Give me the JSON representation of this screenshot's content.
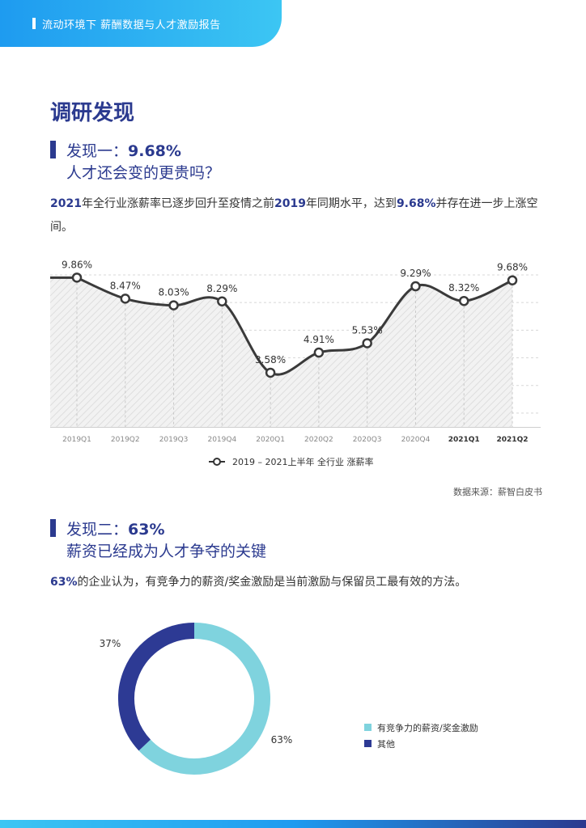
{
  "header": {
    "title": "流动环境下 薪酬数据与人才激励报告"
  },
  "section": {
    "title": "调研发现"
  },
  "finding1": {
    "label": "发现一：",
    "highlight": "9.68%",
    "subtitle": "人才还会变的更贵吗？",
    "para_year1": "2021",
    "para_text1": "年全行业涨薪率已逐步回升至疫情之前",
    "para_year2": "2019",
    "para_text2": "年同期水平，达到",
    "para_value": "9.68%",
    "para_text3": "并存在进一步上涨空间。"
  },
  "chart1_legend": "2019 – 2021上半年 全行业 涨薪率",
  "source": "数据来源：薪智白皮书",
  "finding2": {
    "label": "发现二：",
    "highlight": "63%",
    "subtitle": "薪资已经成为人才争夺的关键",
    "para_value": "63%",
    "para_text": "的企业认为，有竞争力的薪资/奖金激励是当前激励与保留员工最有效的方法。"
  },
  "colors": {
    "accent": "#2b3a8f",
    "header": "#1e9bf0",
    "donut_light": "#7fd3de",
    "donut_dark": "#2d3a94"
  },
  "chart_data": [
    {
      "type": "area",
      "categories": [
        "2019Q1",
        "2019Q2",
        "2019Q3",
        "2019Q4",
        "2020Q1",
        "2020Q2",
        "2020Q3",
        "2020Q4",
        "2021Q1",
        "2021Q2"
      ],
      "values": [
        9.86,
        8.47,
        8.03,
        8.29,
        3.58,
        4.91,
        5.53,
        9.29,
        8.32,
        9.68
      ],
      "labels": [
        "9.86%",
        "8.47%",
        "8.03%",
        "8.29%",
        "3.58%",
        "4.91%",
        "5.53%",
        "9.29%",
        "8.32%",
        "9.68%"
      ],
      "series": [
        {
          "name": "2019 – 2021上半年 全行业 涨薪率",
          "values": [
            9.86,
            8.47,
            8.03,
            8.29,
            3.58,
            4.91,
            5.53,
            9.29,
            8.32,
            9.68
          ]
        }
      ],
      "ylim": [
        0,
        11
      ],
      "grid": true
    },
    {
      "type": "pie",
      "style": "donut",
      "categories": [
        "有竞争力的薪资/奖金激励",
        "其他"
      ],
      "values": [
        63,
        37
      ],
      "labels": [
        "63%",
        "37%"
      ],
      "colors": [
        "#7fd3de",
        "#2d3a94"
      ],
      "legend": "right"
    }
  ]
}
